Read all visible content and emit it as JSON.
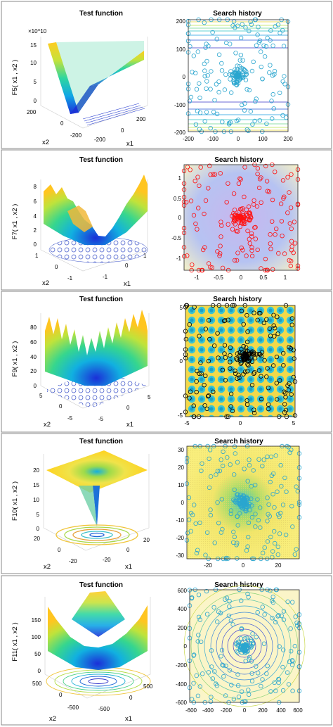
{
  "chart_data": [
    {
      "type": "figure-pair",
      "function": "F5",
      "surface_plot": {
        "title": "Test function",
        "zlabel": "F5( x1 , x2 )",
        "xlabel": "x1",
        "ylabel": "x2",
        "z_multiplier": "×10^10",
        "z_ticks": [
          "0",
          "5",
          "10",
          "15"
        ],
        "x_ticks": [
          "-200",
          "0",
          "200"
        ],
        "y_ticks": [
          "-200",
          "0",
          "200"
        ]
      },
      "search_history": {
        "title": "Search history",
        "xlim": [
          -200,
          200
        ],
        "ylim": [
          -200,
          200
        ],
        "x_ticks": [
          "-200",
          "-100",
          "0",
          "100",
          "200"
        ],
        "y_ticks": [
          "-200",
          "-100",
          "0",
          "100",
          "200"
        ],
        "marker_color": "#2ba6cf",
        "cluster_center": [
          0,
          0
        ]
      }
    },
    {
      "type": "figure-pair",
      "function": "F7",
      "surface_plot": {
        "title": "Test function",
        "zlabel": "F7( x1 , x2 )",
        "xlabel": "x1",
        "ylabel": "x2",
        "z_ticks": [
          "0",
          "2",
          "4",
          "6",
          "8"
        ],
        "x_ticks": [
          "-1",
          "0",
          "1"
        ],
        "y_ticks": [
          "-1",
          "0",
          "1"
        ]
      },
      "search_history": {
        "title": "Search history",
        "xlim": [
          -1.28,
          1.28
        ],
        "ylim": [
          -1.28,
          1.28
        ],
        "x_ticks": [
          "-1",
          "-0.5",
          "0",
          "0.5",
          "1"
        ],
        "y_ticks": [
          "-1",
          "-0.5",
          "0",
          "0.5",
          "1"
        ],
        "marker_color": "#ff1111",
        "cluster_center": [
          0,
          0
        ]
      }
    },
    {
      "type": "figure-pair",
      "function": "F9",
      "surface_plot": {
        "title": "Test function",
        "zlabel": "F9( x1 , x2 )",
        "xlabel": "x1",
        "ylabel": "x2",
        "z_ticks": [
          "0",
          "20",
          "40",
          "60",
          "80"
        ],
        "x_ticks": [
          "-5",
          "0",
          "5"
        ],
        "y_ticks": [
          "-5",
          "0",
          "5"
        ]
      },
      "search_history": {
        "title": "Search history",
        "xlim": [
          -5.12,
          5.12
        ],
        "ylim": [
          -5.12,
          5.12
        ],
        "x_ticks": [
          "-5",
          "0",
          "5"
        ],
        "y_ticks": [
          "-5",
          "0",
          "5"
        ],
        "marker_color": "#000000",
        "cluster_center": [
          0.5,
          0.5
        ]
      }
    },
    {
      "type": "figure-pair",
      "function": "F10",
      "surface_plot": {
        "title": "Test function",
        "zlabel": "F10( x1 , x2 )",
        "xlabel": "x1",
        "ylabel": "x2",
        "z_ticks": [
          "0",
          "5",
          "10",
          "15",
          "20"
        ],
        "x_ticks": [
          "-20",
          "0",
          "20"
        ],
        "y_ticks": [
          "-20",
          "0",
          "20"
        ]
      },
      "search_history": {
        "title": "Search history",
        "xlim": [
          -32,
          32
        ],
        "ylim": [
          -32,
          32
        ],
        "x_ticks": [
          "-20",
          "0",
          "20"
        ],
        "y_ticks": [
          "-30",
          "-20",
          "-10",
          "0",
          "10",
          "20",
          "30"
        ],
        "marker_color": "#2ba6cf",
        "cluster_center": [
          0,
          0
        ]
      }
    },
    {
      "type": "figure-pair",
      "function": "F11",
      "surface_plot": {
        "title": "Test function",
        "zlabel": "F11( x1 , x2 )",
        "xlabel": "x1",
        "ylabel": "x2",
        "z_ticks": [
          "0",
          "50",
          "100",
          "150"
        ],
        "x_ticks": [
          "-500",
          "0",
          "500"
        ],
        "y_ticks": [
          "-500",
          "0",
          "500"
        ]
      },
      "search_history": {
        "title": "Search history",
        "xlim": [
          -600,
          600
        ],
        "ylim": [
          -600,
          600
        ],
        "x_ticks": [
          "-600",
          "-400",
          "-200",
          "0",
          "200",
          "400",
          "600"
        ],
        "y_ticks": [
          "-600",
          "-400",
          "-200",
          "0",
          "200",
          "400",
          "600"
        ],
        "marker_color": "#2ba6cf",
        "cluster_center": [
          0,
          0
        ]
      }
    }
  ]
}
